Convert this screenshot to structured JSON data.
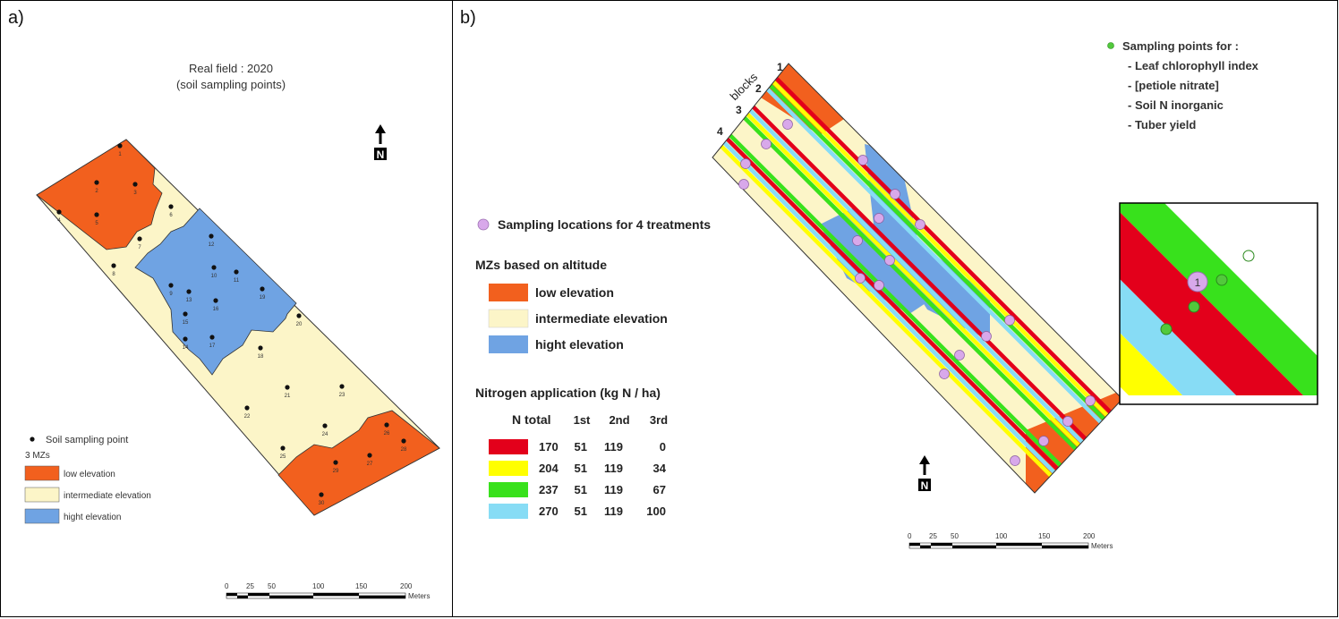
{
  "colors": {
    "low": "#f2601e",
    "intermediate": "#fcf5c8",
    "high": "#6fa3e3",
    "n170": "#e3001b",
    "n204": "#ffff00",
    "n237": "#38e11c",
    "n270": "#87dcf5",
    "sampling_circle": "#d8a8ea",
    "green_point": "#52c93c"
  },
  "panel_a": {
    "label": "a)",
    "title_line1": "Real field : 2020",
    "title_line2": "(soil sampling points)",
    "north": "N",
    "point_numbers": [
      "1",
      "2",
      "3",
      "4",
      "5",
      "6",
      "7",
      "8",
      "9",
      "10",
      "11",
      "12",
      "13",
      "14",
      "15",
      "16",
      "17",
      "18",
      "19",
      "20",
      "21",
      "22",
      "23",
      "24",
      "25",
      "26",
      "27",
      "28",
      "29",
      "30"
    ],
    "legend": {
      "point_label": "Soil sampling point",
      "heading": "3 MZs",
      "items": [
        "low elevation",
        "intermediate elevation",
        "hight elevation"
      ]
    },
    "scale": {
      "ticks": [
        "0",
        "25",
        "50",
        "100",
        "150",
        "200"
      ],
      "unit": "Meters"
    }
  },
  "panel_b": {
    "label": "b)",
    "blocks_label": "blocks",
    "block_numbers": [
      "1",
      "2",
      "3",
      "4"
    ],
    "sampling_legend": "Sampling locations for 4 treatments",
    "mz_heading": "MZs based on altitude",
    "mz_items": [
      "low elevation",
      "intermediate elevation",
      "hight elevation"
    ],
    "nitrogen_heading": "Nitrogen application (kg N / ha)",
    "table_headers": [
      "N total",
      "1st",
      "2nd",
      "3rd"
    ],
    "table_rows": [
      [
        "170",
        "51",
        "119",
        "0"
      ],
      [
        "204",
        "51",
        "119",
        "34"
      ],
      [
        "237",
        "51",
        "119",
        "67"
      ],
      [
        "270",
        "51",
        "119",
        "100"
      ]
    ],
    "sampling_points_title": "Sampling points for :",
    "sampling_points_items": [
      "- Leaf chlorophyll index",
      "- [petiole nitrate]",
      "- Soil N inorganic",
      "- Tuber yield"
    ],
    "inset_circle_label": "1",
    "north": "N",
    "scale": {
      "ticks": [
        "0",
        "25",
        "50",
        "100",
        "150",
        "200"
      ],
      "unit": "Meters"
    }
  }
}
